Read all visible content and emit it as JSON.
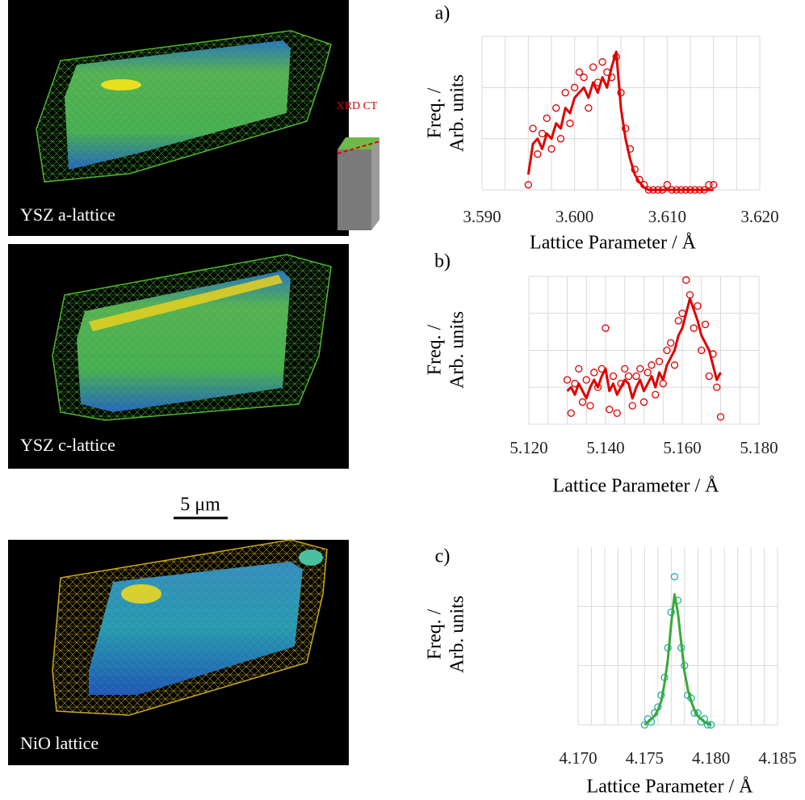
{
  "panels": [
    {
      "label": "YSZ a-lattice"
    },
    {
      "label": "YSZ c-lattice"
    },
    {
      "label": "NiO lattice"
    }
  ],
  "scale_bar": "5 μm",
  "inset_label": "XRD CT",
  "chart_data": [
    {
      "type": "line",
      "panel_label": "a)",
      "ylabel": [
        "Freq. /",
        "Arb. units"
      ],
      "xlabel": "Lattice Parameter / Å",
      "xlim": [
        3.59,
        3.62
      ],
      "xticks": [
        {
          "value": 3.59,
          "label": "3.590"
        },
        {
          "value": 3.6,
          "label": "3.600"
        },
        {
          "value": 3.61,
          "label": "3.610"
        },
        {
          "value": 3.62,
          "label": "3.620"
        }
      ],
      "xgrid": [
        3.59,
        3.5925,
        3.595,
        3.5975,
        3.6,
        3.6025,
        3.605,
        3.6075,
        3.61,
        3.6125,
        3.615,
        3.6175,
        3.62
      ],
      "ylim": [
        0,
        3
      ],
      "yticks": [
        0,
        1,
        2,
        3
      ],
      "ytick_labels": false,
      "grid": true,
      "x": [
        3.595,
        3.5955,
        3.596,
        3.5965,
        3.597,
        3.5975,
        3.598,
        3.5985,
        3.599,
        3.5995,
        3.6,
        3.6005,
        3.601,
        3.6015,
        3.602,
        3.6025,
        3.603,
        3.6035,
        3.604,
        3.6045,
        3.605,
        3.6055,
        3.606,
        3.6065,
        3.607,
        3.6075,
        3.608,
        3.6085,
        3.609,
        3.6095,
        3.61,
        3.6105,
        3.611,
        3.6115,
        3.612,
        3.6125,
        3.613,
        3.6135,
        3.614,
        3.6145,
        3.615
      ],
      "series": [
        {
          "style": "markers",
          "color": "#e00000",
          "values": [
            0.1,
            1.2,
            0.7,
            1.1,
            1.4,
            0.8,
            1.6,
            1.0,
            1.9,
            1.3,
            2.0,
            2.3,
            2.2,
            1.6,
            2.4,
            2.1,
            2.5,
            2.3,
            2.2,
            2.6,
            1.9,
            1.2,
            0.8,
            0.4,
            0.2,
            0.1,
            0,
            0,
            0,
            0,
            0.1,
            0,
            0,
            0,
            0,
            0,
            0,
            0,
            0,
            0.1,
            0.1
          ]
        },
        {
          "style": "line",
          "color": "#e00000",
          "values": [
            0.3,
            0.9,
            1.0,
            0.8,
            1.1,
            1.0,
            1.3,
            1.2,
            1.6,
            1.5,
            1.8,
            1.9,
            2.0,
            1.8,
            2.1,
            1.9,
            2.2,
            2.0,
            2.4,
            2.7,
            1.6,
            1.0,
            0.6,
            0.3,
            0.15,
            0.05,
            0,
            0,
            0,
            0,
            0,
            0,
            0,
            0,
            0,
            0,
            0,
            0,
            0,
            0,
            0
          ]
        }
      ]
    },
    {
      "type": "line",
      "panel_label": "b)",
      "ylabel": [
        "Freq. /",
        "Arb. units"
      ],
      "xlabel": "Lattice Parameter / Å",
      "xlim": [
        5.12,
        5.18
      ],
      "xticks": [
        {
          "value": 5.12,
          "label": "5.120"
        },
        {
          "value": 5.14,
          "label": "5.140"
        },
        {
          "value": 5.16,
          "label": "5.160"
        },
        {
          "value": 5.18,
          "label": "5.180"
        }
      ],
      "xgrid": [
        5.12,
        5.125,
        5.13,
        5.135,
        5.14,
        5.145,
        5.15,
        5.155,
        5.16,
        5.165,
        5.17,
        5.175,
        5.18
      ],
      "ylim": [
        0,
        4
      ],
      "yticks": [
        0,
        1,
        2,
        3,
        4
      ],
      "ytick_labels": false,
      "grid": true,
      "x": [
        5.13,
        5.131,
        5.132,
        5.133,
        5.134,
        5.135,
        5.136,
        5.137,
        5.138,
        5.139,
        5.14,
        5.141,
        5.142,
        5.143,
        5.144,
        5.145,
        5.146,
        5.147,
        5.148,
        5.149,
        5.15,
        5.151,
        5.152,
        5.153,
        5.154,
        5.155,
        5.156,
        5.157,
        5.158,
        5.159,
        5.16,
        5.161,
        5.162,
        5.163,
        5.164,
        5.165,
        5.166,
        5.167,
        5.168,
        5.169,
        5.17
      ],
      "series": [
        {
          "style": "markers",
          "color": "#e00000",
          "values": [
            1.2,
            0.3,
            1.1,
            1.5,
            0.6,
            1.2,
            0.5,
            1.4,
            1.0,
            1.5,
            2.6,
            0.4,
            1.3,
            0.3,
            1.1,
            1.5,
            1.3,
            0.5,
            1.3,
            1.5,
            0.6,
            1.4,
            1.6,
            0.8,
            1.7,
            1.1,
            2.0,
            2.2,
            1.6,
            2.8,
            3.0,
            3.9,
            3.5,
            2.6,
            3.2,
            2.0,
            2.7,
            1.3,
            1.9,
            1.0,
            0.2
          ]
        },
        {
          "style": "line",
          "color": "#e00000",
          "values": [
            0.9,
            1.0,
            0.8,
            1.1,
            0.9,
            0.7,
            1.0,
            1.2,
            1.0,
            1.3,
            1.5,
            0.9,
            1.1,
            0.8,
            1.0,
            1.2,
            1.1,
            0.7,
            1.0,
            1.2,
            0.9,
            1.1,
            1.3,
            1.0,
            1.4,
            1.2,
            1.6,
            1.8,
            2.0,
            2.4,
            2.6,
            3.0,
            3.4,
            3.1,
            2.8,
            2.4,
            2.2,
            2.0,
            1.6,
            1.2,
            1.4
          ]
        }
      ]
    },
    {
      "type": "line",
      "panel_label": "c)",
      "ylabel": [
        "Freq. /",
        "Arb. units"
      ],
      "xlabel": "Lattice Parameter / Å",
      "xlim": [
        4.17,
        4.185
      ],
      "xticks": [
        {
          "value": 4.17,
          "label": "4.170"
        },
        {
          "value": 4.175,
          "label": "4.175"
        },
        {
          "value": 4.18,
          "label": "4.180"
        },
        {
          "value": 4.185,
          "label": "4.185"
        }
      ],
      "xgrid": [
        4.17,
        4.171,
        4.172,
        4.173,
        4.174,
        4.175,
        4.176,
        4.177,
        4.178,
        4.179,
        4.18,
        4.181,
        4.182,
        4.183,
        4.184,
        4.185
      ],
      "ylim": [
        0,
        3
      ],
      "yticks": [
        0,
        1,
        2
      ],
      "ytick_labels": false,
      "grid": true,
      "x": [
        4.175,
        4.17525,
        4.1755,
        4.17575,
        4.176,
        4.17625,
        4.1765,
        4.17675,
        4.177,
        4.17725,
        4.1775,
        4.17775,
        4.178,
        4.17825,
        4.1785,
        4.17875,
        4.179,
        4.17925,
        4.1795,
        4.17975,
        4.18
      ],
      "series": [
        {
          "style": "markers",
          "color": "#22b0a0",
          "values": [
            0,
            0.1,
            0.05,
            0.2,
            0.3,
            0.5,
            0.8,
            1.3,
            1.9,
            2.5,
            2.1,
            1.3,
            1.0,
            0.5,
            0.45,
            0.2,
            0.2,
            0.05,
            0.1,
            0,
            0
          ]
        },
        {
          "style": "line",
          "color": "#3aa83a",
          "values": [
            0,
            0.05,
            0.1,
            0.15,
            0.25,
            0.4,
            0.7,
            1.1,
            1.7,
            2.2,
            1.9,
            1.4,
            0.9,
            0.6,
            0.4,
            0.25,
            0.15,
            0.1,
            0.05,
            0.02,
            0
          ]
        }
      ]
    }
  ]
}
